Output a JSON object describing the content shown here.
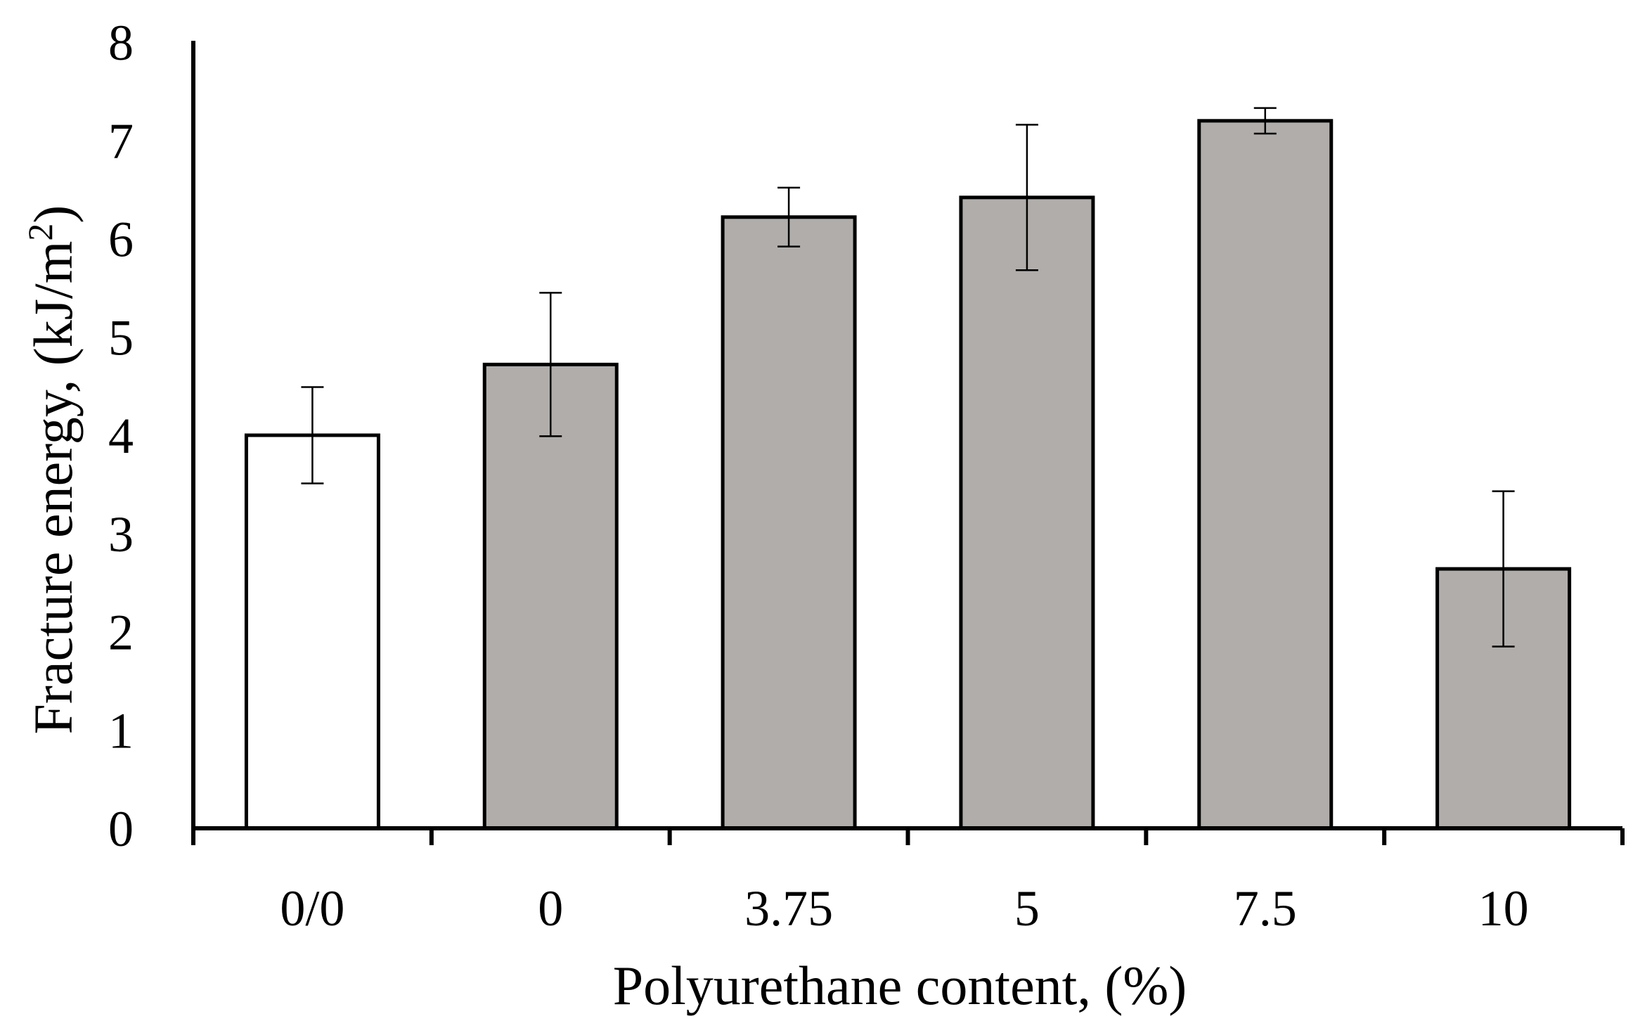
{
  "chart_data": {
    "type": "bar",
    "categories": [
      "0/0",
      "0",
      "3.75",
      "5",
      "7.5",
      "10"
    ],
    "values": [
      4.0,
      4.72,
      6.22,
      6.42,
      7.2,
      2.64
    ],
    "errors": [
      0.49,
      0.73,
      0.3,
      0.74,
      0.13,
      0.79
    ],
    "bar_colors": [
      "#ffffff",
      "#b0adab",
      "#b0adab",
      "#b0adab",
      "#b0adab",
      "#b0adab"
    ],
    "xlabel": "Polyurethane content, (%)",
    "ylabel": "Fracture energy, (kJ/m",
    "ylabel_superscript": "2",
    "ylabel_close": ")",
    "ylim": [
      0,
      8
    ],
    "yticks": [
      "0",
      "1",
      "2",
      "3",
      "4",
      "5",
      "6",
      "7",
      "8"
    ],
    "grid": false,
    "legend": "none"
  }
}
